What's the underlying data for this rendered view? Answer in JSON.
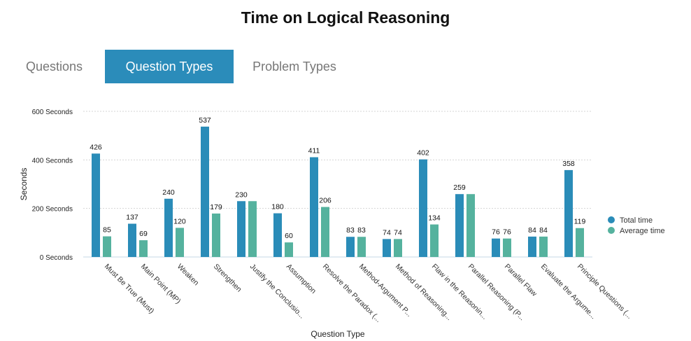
{
  "title": "Time on Logical Reasoning",
  "tabs": [
    {
      "label": "Questions",
      "active": false
    },
    {
      "label": "Question Types",
      "active": true
    },
    {
      "label": "Problem Types",
      "active": false
    }
  ],
  "colors": {
    "accent": "#2b8cba",
    "total": "#2a8cb8",
    "average": "#55b29e"
  },
  "chart_data": {
    "type": "bar",
    "xlabel": "Question Type",
    "ylabel": "Seconds",
    "ylim": [
      0,
      600
    ],
    "yticks": [
      {
        "value": 0,
        "label": "0 Seconds"
      },
      {
        "value": 200,
        "label": "200 Seconds"
      },
      {
        "value": 400,
        "label": "400 Seconds"
      },
      {
        "value": 600,
        "label": "600 Seconds"
      }
    ],
    "grid": true,
    "legend_position": "right",
    "categories": [
      "Must Be True (Must)",
      "Main Point (MP)",
      "Weaken",
      "Strengthen",
      "Justify the Conclusio...",
      "Assumption",
      "Resolve the Paradox (...",
      "Method-Argument P...",
      "Method of Reasoning...",
      "Flaw in the Reasonin...",
      "Parallel Reasoning (P...",
      "Parallel Flaw",
      "Evaluate the Argume...",
      "Principle Questions (..."
    ],
    "series": [
      {
        "name": "Total time",
        "values": [
          426,
          137,
          240,
          537,
          230,
          180,
          411,
          83,
          74,
          402,
          259,
          76,
          84,
          358
        ]
      },
      {
        "name": "Average time",
        "values": [
          85,
          69,
          120,
          179,
          230,
          60,
          206,
          83,
          74,
          134,
          259,
          76,
          84,
          119
        ]
      }
    ]
  }
}
